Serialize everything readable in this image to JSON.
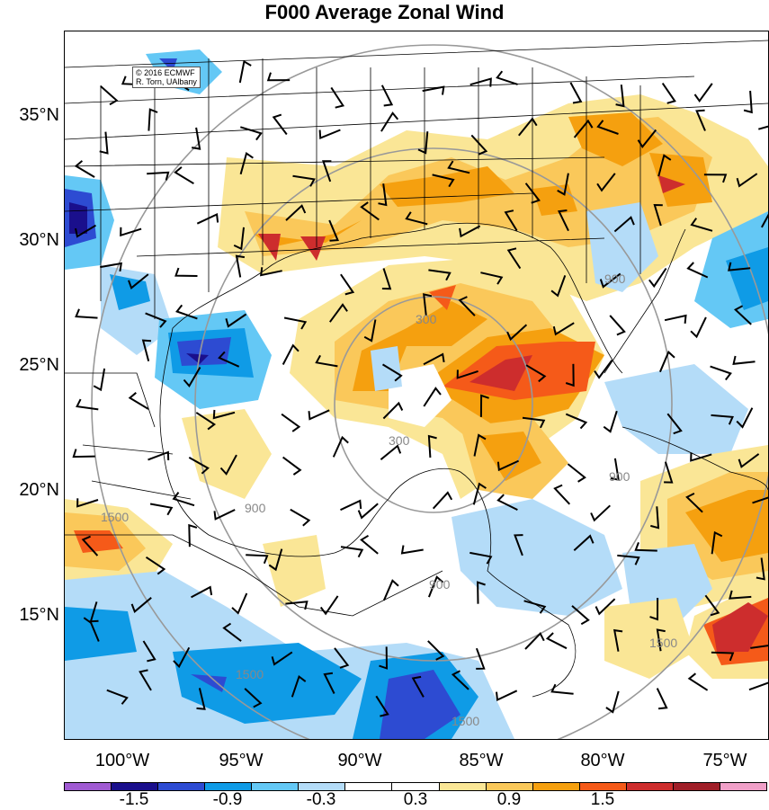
{
  "title": "F000 Average Zonal Wind",
  "credit": {
    "line1": "© 2016 ECMWF",
    "line2": "R. Torn, UAlbany"
  },
  "lat_labels": [
    "35°N",
    "30°N",
    "25°N",
    "20°N",
    "15°N"
  ],
  "lon_labels": [
    "100°W",
    "95°W",
    "90°W",
    "85°W",
    "80°W",
    "75°W"
  ],
  "colorbar": {
    "colors": [
      "#a05ad2",
      "#1a0f8c",
      "#2d4bd2",
      "#0f9be6",
      "#64c8f5",
      "#b4dcf8",
      "#ffffff",
      "#ffffff",
      "#fae696",
      "#fac85a",
      "#f5a00f",
      "#f55a19",
      "#cd2d2d",
      "#a01e28",
      "#f0a0c8"
    ],
    "tick_labels": [
      "-1.5",
      "-0.9",
      "-0.3",
      "0.3",
      "0.9",
      "1.5"
    ]
  },
  "contour_labels": [
    "300",
    "300",
    "900",
    "900",
    "900",
    "900",
    "1500",
    "1500",
    "1500",
    "1500"
  ],
  "overlay_colors": {
    "contour": "#999999",
    "barb": "#000000",
    "borders": "#000000"
  }
}
